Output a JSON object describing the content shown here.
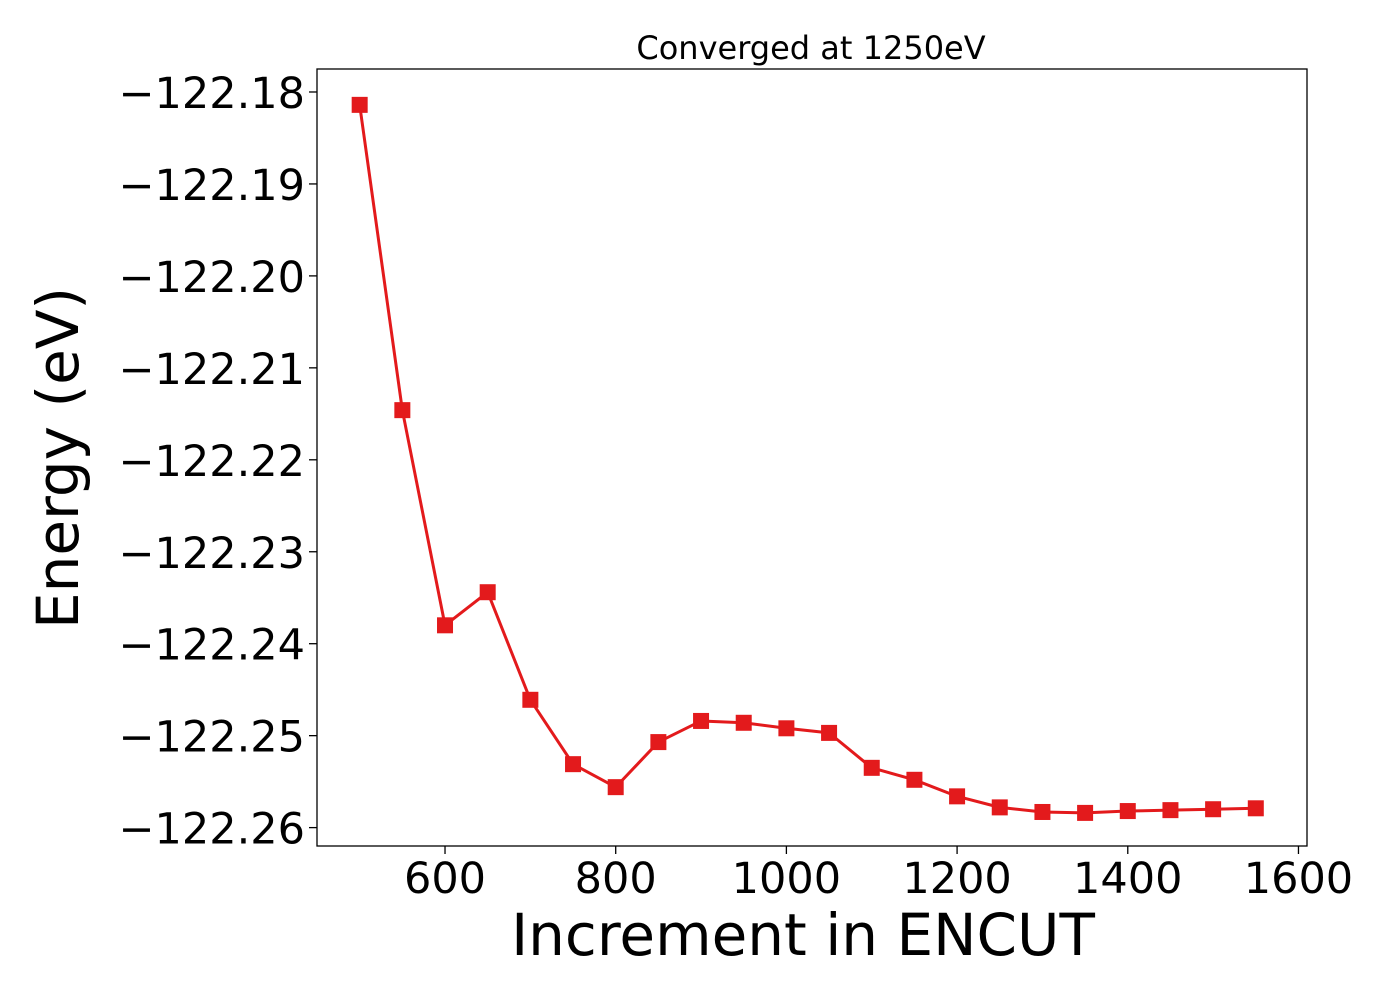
{
  "chart_data": {
    "type": "line",
    "title": "Converged at 1250eV",
    "xlabel": "Increment in ENCUT",
    "ylabel": "Energy (eV)",
    "xlim": [
      450,
      1610
    ],
    "ylim": [
      -122.262,
      -122.1775
    ],
    "xticks": [
      600,
      800,
      1000,
      1200,
      1400,
      1600
    ],
    "xtick_labels": [
      "600",
      "800",
      "1000",
      "1200",
      "1400",
      "1600"
    ],
    "yticks": [
      -122.26,
      -122.25,
      -122.24,
      -122.23,
      -122.22,
      -122.21,
      -122.2,
      -122.19,
      -122.18
    ],
    "ytick_labels": [
      "−122.26",
      "−122.25",
      "−122.24",
      "−122.23",
      "−122.22",
      "−122.21",
      "−122.20",
      "−122.19",
      "−122.18"
    ],
    "grid": false,
    "legend": "none",
    "marker": "square",
    "color": "#e31a1c",
    "series": [
      {
        "x": [
          500,
          550,
          600,
          650,
          700,
          750,
          800,
          850,
          900,
          950,
          1000,
          1050,
          1100,
          1150,
          1200,
          1250,
          1300,
          1350,
          1400,
          1450,
          1500,
          1550
        ],
        "y": [
          -122.1814,
          -122.2146,
          -122.238,
          -122.2344,
          -122.2461,
          -122.2531,
          -122.2556,
          -122.2507,
          -122.2484,
          -122.2486,
          -122.2492,
          -122.2497,
          -122.2535,
          -122.2548,
          -122.2566,
          -122.2578,
          -122.2583,
          -122.2584,
          -122.2582,
          -122.2581,
          -122.258,
          -122.2579
        ]
      }
    ]
  }
}
